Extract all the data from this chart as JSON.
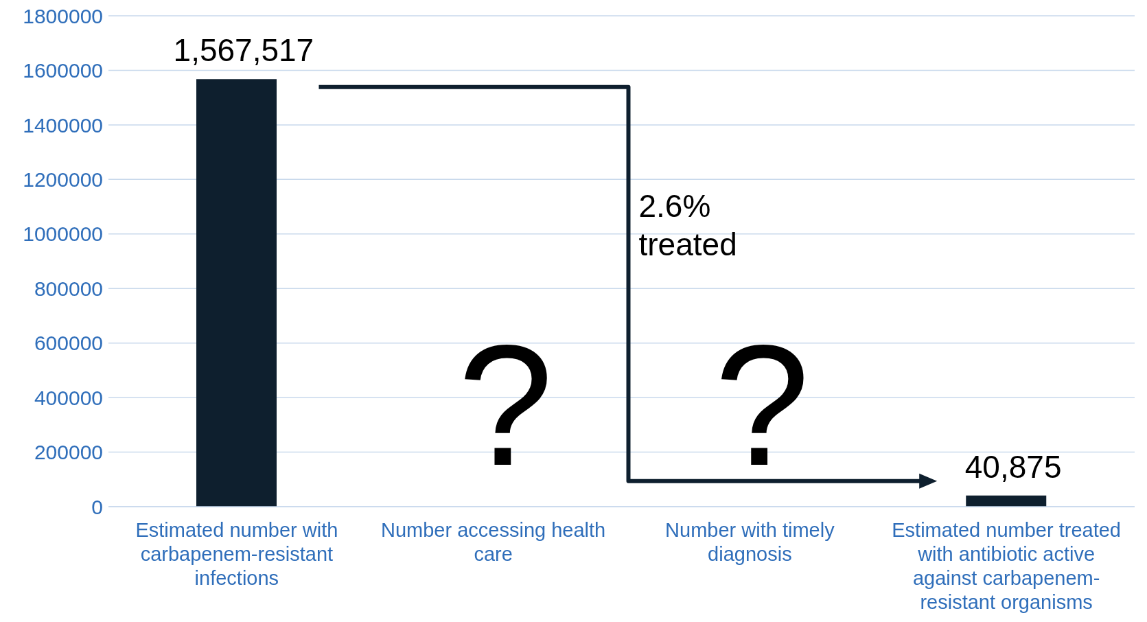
{
  "chart_data": {
    "type": "bar",
    "categories": [
      "Estimated number with carbapenem-resistant infections",
      "Number accessing health care",
      "Number with timely diagnosis",
      "Estimated number treated with antibiotic active against carbapenem-resistant organisms"
    ],
    "values": [
      1567517,
      null,
      null,
      40875
    ],
    "value_labels": [
      "1,567,517",
      null,
      null,
      "40,875"
    ],
    "color": "#0e1f2e",
    "ylim": [
      0,
      1800000
    ],
    "yticks": [
      0,
      200000,
      400000,
      600000,
      800000,
      1000000,
      1200000,
      1400000,
      1600000,
      1800000
    ],
    "grid": "y",
    "annotations": [
      "?",
      "?",
      "2.6% treated"
    ]
  }
}
